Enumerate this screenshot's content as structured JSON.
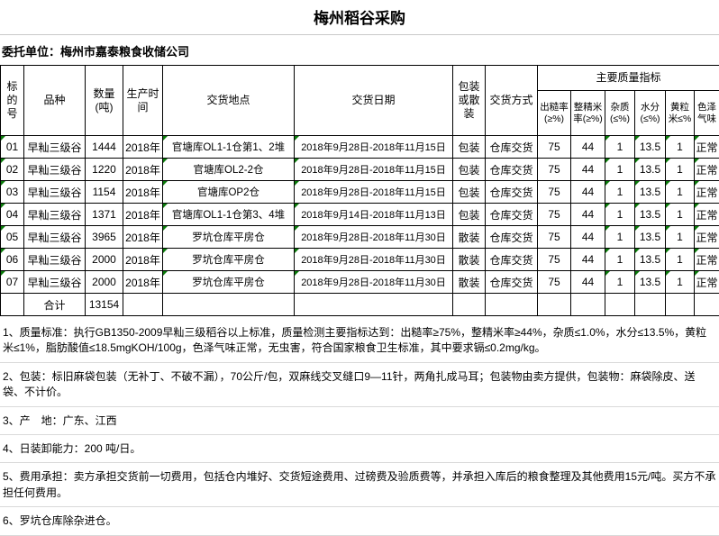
{
  "title": "梅州稻谷采购",
  "client_label": "委托单位：梅州市嘉泰粮食收储公司",
  "table": {
    "headers": {
      "id": "标的号",
      "variety": "品种",
      "quantity": "数量(吨)",
      "year": "生产时间",
      "location": "交货地点",
      "date": "交货日期",
      "packing": "包装或散装",
      "delivery": "交货方式",
      "quality_group": "主要质量指标",
      "quality_cols": {
        "husked": "出糙率(≥%)",
        "head_rice": "整精米率(≥%)",
        "impurity": "杂质(≤%)",
        "moisture": "水分(≤%)",
        "yellow": "黄粒米≤%",
        "color": "色泽气味"
      }
    },
    "rows": [
      {
        "id": "01",
        "variety": "早籼三级谷",
        "quantity": "1444",
        "year": "2018年",
        "location": "官塘库OL1-1仓第1、2堆",
        "date": "2018年9月28日-2018年11月15日",
        "packing": "包装",
        "delivery": "仓库交货",
        "husked": "75",
        "head_rice": "44",
        "impurity": "1",
        "moisture": "13.5",
        "yellow": "1",
        "color": "正常"
      },
      {
        "id": "02",
        "variety": "早籼三级谷",
        "quantity": "1220",
        "year": "2018年",
        "location": "官塘库OL2-2仓",
        "date": "2018年9月28日-2018年11月15日",
        "packing": "包装",
        "delivery": "仓库交货",
        "husked": "75",
        "head_rice": "44",
        "impurity": "1",
        "moisture": "13.5",
        "yellow": "1",
        "color": "正常"
      },
      {
        "id": "03",
        "variety": "早籼三级谷",
        "quantity": "1154",
        "year": "2018年",
        "location": "官塘库OP2仓",
        "date": "2018年9月28日-2018年11月15日",
        "packing": "包装",
        "delivery": "仓库交货",
        "husked": "75",
        "head_rice": "44",
        "impurity": "1",
        "moisture": "13.5",
        "yellow": "1",
        "color": "正常"
      },
      {
        "id": "04",
        "variety": "早籼三级谷",
        "quantity": "1371",
        "year": "2018年",
        "location": "官塘库OL1-1仓第3、4堆",
        "date": "2018年9月14日-2018年11月13日",
        "packing": "包装",
        "delivery": "仓库交货",
        "husked": "75",
        "head_rice": "44",
        "impurity": "1",
        "moisture": "13.5",
        "yellow": "1",
        "color": "正常"
      },
      {
        "id": "05",
        "variety": "早籼三级谷",
        "quantity": "3965",
        "year": "2018年",
        "location": "罗坑仓库平房仓",
        "date": "2018年9月28日-2018年11月30日",
        "packing": "散装",
        "delivery": "仓库交货",
        "husked": "75",
        "head_rice": "44",
        "impurity": "1",
        "moisture": "13.5",
        "yellow": "1",
        "color": "正常"
      },
      {
        "id": "06",
        "variety": "早籼三级谷",
        "quantity": "2000",
        "year": "2018年",
        "location": "罗坑仓库平房仓",
        "date": "2018年9月28日-2018年11月30日",
        "packing": "散装",
        "delivery": "仓库交货",
        "husked": "75",
        "head_rice": "44",
        "impurity": "1",
        "moisture": "13.5",
        "yellow": "1",
        "color": "正常"
      },
      {
        "id": "07",
        "variety": "早籼三级谷",
        "quantity": "2000",
        "year": "2018年",
        "location": "罗坑仓库平房仓",
        "date": "2018年9月28日-2018年11月30日",
        "packing": "散装",
        "delivery": "仓库交货",
        "husked": "75",
        "head_rice": "44",
        "impurity": "1",
        "moisture": "13.5",
        "yellow": "1",
        "color": "正常"
      }
    ],
    "total_label": "合计",
    "total_quantity": "13154"
  },
  "notes": [
    "1、质量标准：执行GB1350-2009早籼三级稻谷以上标准，质量检测主要指标达到：出糙率≥75%，整精米率≥44%，杂质≤1.0%，水分≤13.5%，黄粒米≤1%，脂肪酸值≤18.5mgKOH/100g，色泽气味正常，无虫害，符合国家粮食卫生标准，其中要求镉≤0.2mg/kg。",
    "2、包装：标旧麻袋包装（无补丁、不破不漏），70公斤/包，双麻线交叉缝口9—11针，两角扎成马耳；包装物由卖方提供，包装物：麻袋除皮、送袋、不计价。",
    "3、产　地：广东、江西",
    "4、日装卸能力：200 吨/日。",
    "5、费用承担：卖方承担交货前一切费用，包括仓内堆好、交货短途费用、过磅费及验质费等，并承担入库后的粮食整理及其他费用15元/吨。买方不承担任何费用。",
    "6、罗坑仓库除杂进仓。"
  ],
  "colors": {
    "border": "#000000",
    "grid_line": "#d9d9d9",
    "text_error_triangle": "#0a7a0a"
  }
}
